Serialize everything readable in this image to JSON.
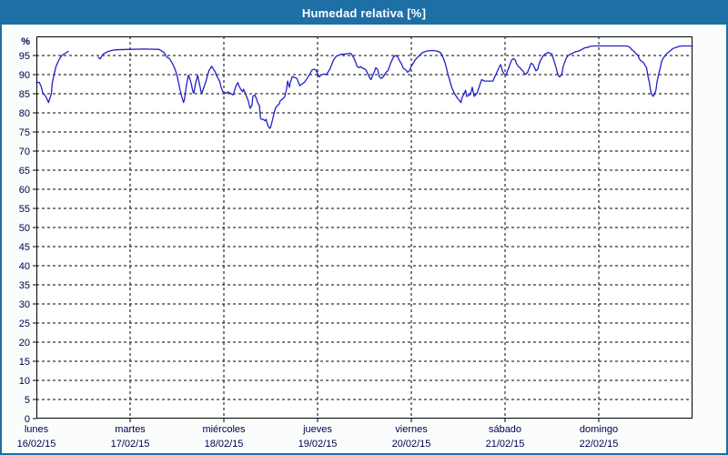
{
  "title": "Humedad relativa [%]",
  "colors": {
    "titlebar_bg": "#1d6fa5",
    "titlebar_text": "#ffffff",
    "frame_border": "#1d6fa5",
    "page_bg": "#fbfdfc",
    "plot_bg": "#ffffff",
    "plot_border": "#000000",
    "grid": "#000000",
    "axis_text": "#00004c",
    "line": "#2121c8"
  },
  "chart_data": {
    "type": "line",
    "title": "Humedad relativa [%]",
    "ylabel": "%",
    "y_unit_label": "%",
    "ylim": [
      0,
      100
    ],
    "xlim": [
      0,
      7
    ],
    "grid": true,
    "grid_style": "dashed",
    "legend_position": "none",
    "y_ticks": [
      0,
      5,
      10,
      15,
      20,
      25,
      30,
      35,
      40,
      45,
      50,
      55,
      60,
      65,
      70,
      75,
      80,
      85,
      90,
      95
    ],
    "x_axis": {
      "unit": "days",
      "days": [
        {
          "name": "lunes",
          "date": "16/02/15"
        },
        {
          "name": "martes",
          "date": "17/02/15"
        },
        {
          "name": "miércoles",
          "date": "18/02/15"
        },
        {
          "name": "jueves",
          "date": "19/02/15"
        },
        {
          "name": "viernes",
          "date": "20/02/15"
        },
        {
          "name": "sábado",
          "date": "21/02/15"
        },
        {
          "name": "domingo",
          "date": "22/02/15"
        }
      ]
    },
    "series": [
      {
        "name": "Humedad relativa",
        "units": "%",
        "segments": [
          [
            [
              0.0,
              87.9
            ],
            [
              0.03,
              88.0
            ],
            [
              0.05,
              87.0
            ],
            [
              0.07,
              85.1
            ],
            [
              0.1,
              84.3
            ],
            [
              0.13,
              82.7
            ],
            [
              0.16,
              85.1
            ],
            [
              0.17,
              87.9
            ],
            [
              0.19,
              90.2
            ],
            [
              0.21,
              92.2
            ],
            [
              0.24,
              93.8
            ],
            [
              0.27,
              95.0
            ],
            [
              0.31,
              95.6
            ],
            [
              0.34,
              96.1
            ]
          ],
          [
            [
              0.66,
              94.5
            ],
            [
              0.68,
              94.1
            ],
            [
              0.71,
              95.3
            ],
            [
              0.76,
              96.0
            ],
            [
              0.8,
              96.3
            ],
            [
              0.85,
              96.5
            ],
            [
              0.97,
              96.6
            ],
            [
              1.16,
              96.7
            ],
            [
              1.31,
              96.6
            ],
            [
              1.36,
              95.8
            ],
            [
              1.39,
              94.6
            ],
            [
              1.42,
              94.2
            ],
            [
              1.45,
              93.0
            ],
            [
              1.48,
              91.4
            ],
            [
              1.5,
              89.8
            ],
            [
              1.53,
              86.3
            ],
            [
              1.55,
              84.3
            ],
            [
              1.57,
              82.7
            ],
            [
              1.58,
              83.5
            ],
            [
              1.6,
              87.1
            ],
            [
              1.62,
              89.8
            ],
            [
              1.63,
              89.4
            ],
            [
              1.65,
              87.9
            ],
            [
              1.67,
              85.5
            ],
            [
              1.68,
              85.1
            ],
            [
              1.7,
              87.9
            ],
            [
              1.72,
              89.8
            ],
            [
              1.73,
              88.7
            ],
            [
              1.75,
              86.3
            ],
            [
              1.76,
              85.1
            ],
            [
              1.77,
              85.5
            ],
            [
              1.81,
              88.3
            ],
            [
              1.84,
              91.0
            ],
            [
              1.86,
              91.8
            ],
            [
              1.87,
              92.2
            ],
            [
              1.89,
              91.4
            ],
            [
              1.91,
              90.6
            ],
            [
              1.92,
              89.8
            ],
            [
              1.94,
              89.0
            ],
            [
              1.96,
              87.9
            ],
            [
              1.97,
              86.7
            ],
            [
              1.99,
              85.5
            ],
            [
              2.02,
              85.1
            ],
            [
              2.04,
              85.5
            ],
            [
              2.07,
              85.1
            ],
            [
              2.1,
              84.7
            ],
            [
              2.11,
              85.5
            ],
            [
              2.13,
              87.1
            ],
            [
              2.15,
              87.9
            ],
            [
              2.16,
              87.1
            ],
            [
              2.18,
              86.2
            ],
            [
              2.2,
              85.5
            ],
            [
              2.21,
              86.2
            ],
            [
              2.23,
              85.1
            ],
            [
              2.26,
              83.1
            ],
            [
              2.28,
              81.2
            ],
            [
              2.3,
              82.0
            ],
            [
              2.31,
              84.3
            ],
            [
              2.33,
              84.7
            ],
            [
              2.35,
              83.5
            ],
            [
              2.36,
              82.7
            ],
            [
              2.38,
              81.9
            ],
            [
              2.39,
              78.7
            ],
            [
              2.4,
              78.3
            ],
            [
              2.42,
              78.3
            ],
            [
              2.44,
              77.9
            ],
            [
              2.45,
              78.3
            ],
            [
              2.47,
              76.7
            ],
            [
              2.49,
              75.9
            ],
            [
              2.5,
              76.3
            ],
            [
              2.52,
              78.3
            ],
            [
              2.54,
              80.3
            ],
            [
              2.55,
              81.2
            ],
            [
              2.57,
              81.9
            ],
            [
              2.59,
              82.3
            ],
            [
              2.6,
              83.1
            ],
            [
              2.62,
              83.5
            ],
            [
              2.64,
              83.9
            ],
            [
              2.65,
              84.3
            ],
            [
              2.67,
              86.3
            ],
            [
              2.68,
              88.3
            ],
            [
              2.7,
              86.7
            ],
            [
              2.71,
              88.0
            ],
            [
              2.73,
              89.5
            ],
            [
              2.76,
              89.2
            ],
            [
              2.78,
              89.0
            ],
            [
              2.81,
              87.1
            ],
            [
              2.86,
              88.0
            ],
            [
              2.91,
              89.8
            ],
            [
              2.94,
              91.2
            ],
            [
              2.96,
              91.4
            ],
            [
              2.98,
              91.3
            ],
            [
              3.01,
              89.8
            ],
            [
              3.02,
              89.4
            ],
            [
              3.03,
              89.8
            ],
            [
              3.07,
              90.2
            ],
            [
              3.08,
              90.0
            ],
            [
              3.1,
              90.2
            ],
            [
              3.13,
              91.4
            ],
            [
              3.17,
              93.8
            ],
            [
              3.2,
              94.8
            ],
            [
              3.22,
              95.0
            ],
            [
              3.25,
              95.3
            ],
            [
              3.3,
              95.4
            ],
            [
              3.35,
              95.6
            ],
            [
              3.36,
              95.4
            ],
            [
              3.39,
              94.2
            ],
            [
              3.41,
              93.0
            ],
            [
              3.42,
              92.2
            ],
            [
              3.44,
              91.8
            ],
            [
              3.46,
              92.1
            ],
            [
              3.47,
              91.8
            ],
            [
              3.51,
              91.4
            ],
            [
              3.52,
              91.0
            ],
            [
              3.56,
              89.0
            ],
            [
              3.57,
              88.7
            ],
            [
              3.61,
              91.0
            ],
            [
              3.62,
              91.8
            ],
            [
              3.64,
              91.4
            ],
            [
              3.66,
              89.4
            ],
            [
              3.68,
              89.0
            ],
            [
              3.7,
              89.4
            ],
            [
              3.73,
              90.6
            ],
            [
              3.75,
              91.0
            ],
            [
              3.78,
              93.0
            ],
            [
              3.81,
              94.6
            ],
            [
              3.83,
              95.0
            ],
            [
              3.85,
              94.8
            ],
            [
              3.88,
              93.4
            ],
            [
              3.9,
              92.6
            ],
            [
              3.91,
              91.8
            ],
            [
              3.95,
              91.0
            ],
            [
              3.96,
              90.6
            ],
            [
              3.98,
              91.0
            ],
            [
              4.0,
              92.2
            ],
            [
              4.04,
              93.8
            ],
            [
              4.07,
              94.6
            ],
            [
              4.1,
              95.3
            ],
            [
              4.12,
              95.8
            ],
            [
              4.17,
              96.2
            ],
            [
              4.22,
              96.3
            ],
            [
              4.27,
              96.2
            ],
            [
              4.31,
              95.8
            ],
            [
              4.33,
              95.0
            ],
            [
              4.36,
              93.1
            ],
            [
              4.39,
              90.2
            ],
            [
              4.43,
              86.7
            ],
            [
              4.46,
              85.1
            ],
            [
              4.49,
              83.9
            ],
            [
              4.53,
              82.7
            ],
            [
              4.54,
              83.9
            ],
            [
              4.58,
              85.9
            ],
            [
              4.59,
              84.3
            ],
            [
              4.63,
              84.8
            ],
            [
              4.65,
              86.7
            ],
            [
              4.67,
              84.3
            ],
            [
              4.7,
              85.1
            ],
            [
              4.75,
              88.7
            ],
            [
              4.78,
              88.3
            ],
            [
              4.87,
              88.3
            ],
            [
              4.92,
              91.0
            ],
            [
              4.95,
              92.6
            ],
            [
              4.96,
              92.2
            ],
            [
              4.97,
              91.0
            ],
            [
              4.99,
              90.2
            ],
            [
              5.01,
              89.8
            ],
            [
              5.02,
              90.6
            ],
            [
              5.04,
              91.8
            ],
            [
              5.07,
              93.8
            ],
            [
              5.09,
              94.2
            ],
            [
              5.11,
              93.8
            ],
            [
              5.12,
              93.0
            ],
            [
              5.14,
              92.2
            ],
            [
              5.16,
              91.8
            ],
            [
              5.17,
              91.4
            ],
            [
              5.19,
              91.0
            ],
            [
              5.21,
              90.2
            ],
            [
              5.22,
              90.1
            ],
            [
              5.24,
              90.6
            ],
            [
              5.26,
              91.8
            ],
            [
              5.27,
              92.6
            ],
            [
              5.28,
              93.0
            ],
            [
              5.3,
              92.6
            ],
            [
              5.33,
              91.0
            ],
            [
              5.35,
              91.4
            ],
            [
              5.36,
              92.6
            ],
            [
              5.38,
              93.8
            ],
            [
              5.4,
              94.6
            ],
            [
              5.41,
              95.0
            ],
            [
              5.43,
              95.4
            ],
            [
              5.46,
              95.8
            ],
            [
              5.48,
              95.6
            ],
            [
              5.5,
              95.4
            ],
            [
              5.51,
              94.6
            ],
            [
              5.53,
              93.0
            ],
            [
              5.55,
              91.4
            ],
            [
              5.56,
              90.2
            ],
            [
              5.58,
              89.4
            ],
            [
              5.6,
              89.8
            ],
            [
              5.61,
              90.6
            ],
            [
              5.62,
              92.2
            ],
            [
              5.64,
              93.4
            ],
            [
              5.65,
              94.2
            ],
            [
              5.67,
              94.9
            ],
            [
              5.7,
              95.4
            ],
            [
              5.72,
              95.6
            ],
            [
              5.75,
              96.0
            ],
            [
              5.79,
              96.2
            ],
            [
              5.82,
              96.6
            ],
            [
              5.85,
              97.0
            ],
            [
              5.89,
              97.2
            ],
            [
              5.91,
              97.4
            ],
            [
              5.96,
              97.5
            ],
            [
              6.3,
              97.5
            ],
            [
              6.33,
              97.2
            ],
            [
              6.35,
              96.6
            ],
            [
              6.37,
              96.2
            ],
            [
              6.38,
              96.0
            ],
            [
              6.4,
              95.4
            ],
            [
              6.42,
              95.0
            ],
            [
              6.43,
              94.2
            ],
            [
              6.45,
              93.6
            ],
            [
              6.47,
              93.3
            ],
            [
              6.48,
              93.0
            ],
            [
              6.5,
              92.2
            ],
            [
              6.51,
              91.8
            ],
            [
              6.52,
              90.2
            ],
            [
              6.53,
              89.0
            ],
            [
              6.54,
              87.9
            ],
            [
              6.55,
              86.3
            ],
            [
              6.56,
              85.1
            ],
            [
              6.58,
              84.3
            ],
            [
              6.59,
              84.7
            ],
            [
              6.61,
              85.9
            ],
            [
              6.62,
              87.9
            ],
            [
              6.64,
              90.2
            ],
            [
              6.66,
              92.2
            ],
            [
              6.67,
              93.4
            ],
            [
              6.69,
              94.4
            ],
            [
              6.71,
              95.0
            ],
            [
              6.72,
              95.4
            ],
            [
              6.76,
              96.2
            ],
            [
              6.79,
              96.8
            ],
            [
              6.82,
              97.1
            ],
            [
              6.86,
              97.4
            ],
            [
              6.9,
              97.5
            ],
            [
              7.0,
              97.5
            ]
          ]
        ]
      }
    ]
  }
}
